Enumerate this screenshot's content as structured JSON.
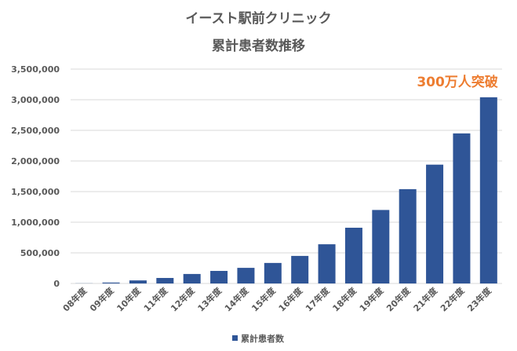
{
  "chart_data": {
    "type": "bar",
    "title_line1": "イースト駅前クリニック",
    "title_line2": "累計患者数推移",
    "categories": [
      "08年度",
      "09年度",
      "10年度",
      "11年度",
      "12年度",
      "13年度",
      "14年度",
      "15年度",
      "16年度",
      "17年度",
      "18年度",
      "19年度",
      "20年度",
      "21年度",
      "22年度",
      "23年度"
    ],
    "series": [
      {
        "name": "累計患者数",
        "values": [
          2000,
          15000,
          50000,
          90000,
          155000,
          205000,
          255000,
          335000,
          450000,
          640000,
          910000,
          1200000,
          1540000,
          1940000,
          2450000,
          3040000
        ]
      }
    ],
    "ylim": [
      0,
      3500000
    ],
    "yticks": [
      0,
      500000,
      1000000,
      1500000,
      2000000,
      2500000,
      3000000,
      3500000
    ],
    "ytick_labels": [
      "0",
      "500,000",
      "1,000,000",
      "1,500,000",
      "2,000,000",
      "2,500,000",
      "3,000,000",
      "3,500,000"
    ],
    "annotation": "300万人突破",
    "legend_position": "bottom",
    "grid": true,
    "colors": {
      "bar": "#2f5597",
      "annotation": "#ed7d31",
      "grid": "#d9d9d9",
      "text": "#595959"
    }
  }
}
